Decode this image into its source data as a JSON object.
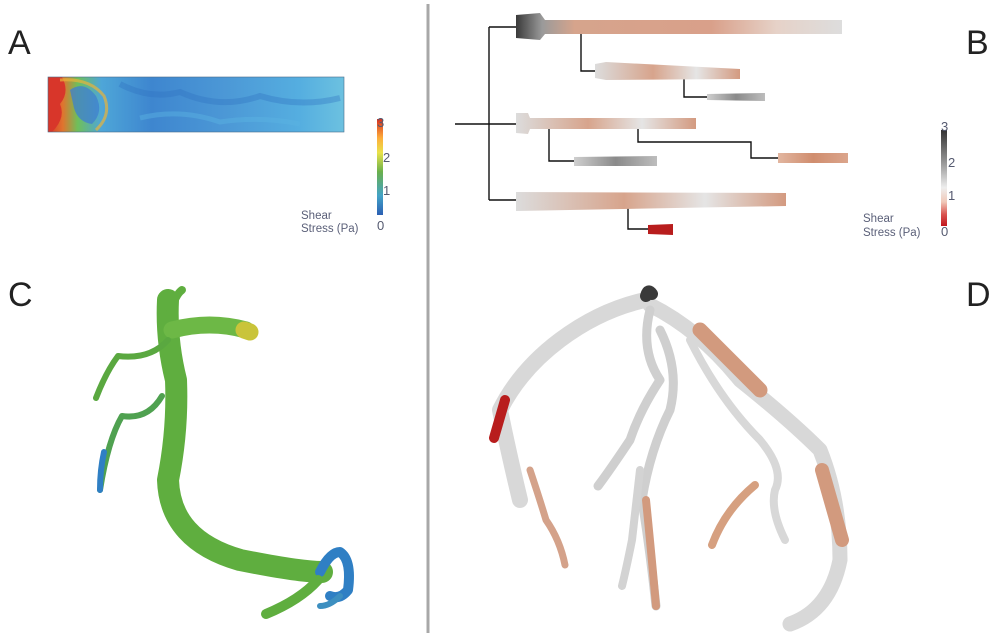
{
  "panels": {
    "A": {
      "label": "A"
    },
    "B": {
      "label": "B"
    },
    "C": {
      "label": "C"
    },
    "D": {
      "label": "D"
    }
  },
  "colorbar_A": {
    "title_line1": "Shear",
    "title_line2": "Stress (Pa)",
    "ticks": [
      "3",
      "2",
      "1",
      "0"
    ],
    "colors": [
      "#d7301f",
      "#fdae3b",
      "#f2e94e",
      "#6ab04c",
      "#43a3c7",
      "#2c5fb3"
    ]
  },
  "colorbar_B": {
    "title_line1": "Shear",
    "title_line2": "Stress (Pa)",
    "ticks": [
      "3",
      "2",
      "1",
      "0"
    ],
    "colors": [
      "#3a3a3a",
      "#9a9a9a",
      "#eeeeee",
      "#f0c8b8",
      "#d9534f",
      "#c0161d"
    ]
  },
  "colors": {
    "divider": "#a8a8a8",
    "vessel_green": "#5fae3f",
    "vessel_blue": "#2f7fc4",
    "vessel_grey": "#d8d8d8",
    "vessel_copper": "#d29a7e",
    "vessel_red": "#b81d1d"
  }
}
